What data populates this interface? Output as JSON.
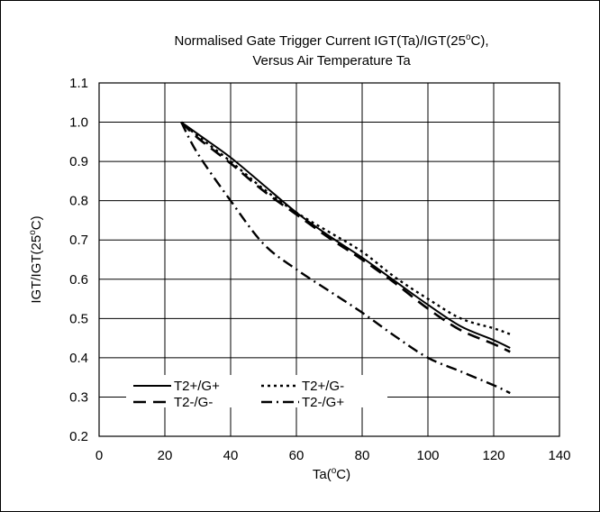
{
  "chart_data": {
    "type": "line",
    "title_line1": "Normalised Gate Trigger Current  IGT(Ta)/IGT(25",
    "title_line1_sup": "o",
    "title_line1_end": "C),",
    "title_line2": "Versus Air Temperature Ta",
    "xlabel_pre": "Ta(",
    "xlabel_sup": "o",
    "xlabel_post": "C)",
    "ylabel_pre": "IGT/IGT(25",
    "ylabel_sup": "o",
    "ylabel_post": "C)",
    "xlim": [
      0,
      140
    ],
    "ylim": [
      0.2,
      1.1
    ],
    "xticks": [
      0,
      20,
      40,
      60,
      80,
      100,
      120,
      140
    ],
    "xtick_labels": [
      "0",
      "20",
      "40",
      "60",
      "80",
      "100",
      "120",
      "140"
    ],
    "yticks": [
      0.2,
      0.3,
      0.4,
      0.5,
      0.6,
      0.7,
      0.8,
      0.9,
      1.0,
      1.1
    ],
    "ytick_labels": [
      "0.2",
      "0.3",
      "0.4",
      "0.5",
      "0.6",
      "0.7",
      "0.8",
      "0.9",
      "1.0",
      "1.1"
    ],
    "grid": true,
    "legend_position": "bottom-left",
    "series": [
      {
        "name": "T2+/G+",
        "dash": "solid",
        "x": [
          25,
          30,
          40,
          50,
          60,
          70,
          80,
          90,
          100,
          110,
          120,
          125
        ],
        "y": [
          1.0,
          0.97,
          0.91,
          0.84,
          0.77,
          0.71,
          0.655,
          0.595,
          0.535,
          0.48,
          0.445,
          0.425
        ]
      },
      {
        "name": "T2+/G-",
        "dash": "dotted",
        "x": [
          25,
          30,
          40,
          50,
          60,
          70,
          80,
          90,
          100,
          110,
          120,
          125
        ],
        "y": [
          1.0,
          0.965,
          0.9,
          0.83,
          0.77,
          0.72,
          0.67,
          0.605,
          0.55,
          0.5,
          0.475,
          0.46
        ]
      },
      {
        "name": "T2-/G-",
        "dash": "dashed",
        "x": [
          25,
          30,
          40,
          50,
          60,
          70,
          80,
          90,
          100,
          110,
          120,
          125
        ],
        "y": [
          1.0,
          0.96,
          0.895,
          0.825,
          0.765,
          0.705,
          0.65,
          0.59,
          0.525,
          0.47,
          0.435,
          0.415
        ]
      },
      {
        "name": "T2-/G+",
        "dash": "dashdot",
        "x": [
          25,
          30,
          40,
          50,
          60,
          70,
          80,
          90,
          100,
          110,
          120,
          125
        ],
        "y": [
          1.0,
          0.92,
          0.8,
          0.69,
          0.625,
          0.57,
          0.515,
          0.455,
          0.4,
          0.365,
          0.33,
          0.31
        ]
      }
    ],
    "colors": {
      "line": "#000000",
      "grid": "#000000",
      "background": "#ffffff"
    }
  }
}
